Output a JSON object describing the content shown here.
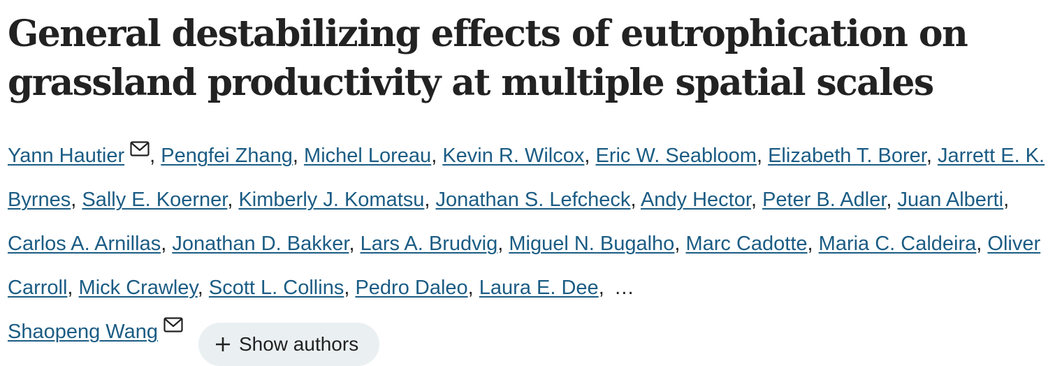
{
  "article": {
    "title": "General destabilizing effects of eutrophication on grassland productivity at multiple spatial scales",
    "authors": [
      {
        "name": "Yann Hautier",
        "corresponding": true
      },
      {
        "name": "Pengfei Zhang"
      },
      {
        "name": "Michel Loreau"
      },
      {
        "name": "Kevin R. Wilcox"
      },
      {
        "name": "Eric W. Seabloom"
      },
      {
        "name": "Elizabeth T. Borer"
      },
      {
        "name": "Jarrett E. K. Byrnes"
      },
      {
        "name": "Sally E. Koerner"
      },
      {
        "name": "Kimberly J. Komatsu"
      },
      {
        "name": "Jonathan S. Lefcheck"
      },
      {
        "name": "Andy Hector"
      },
      {
        "name": "Peter B. Adler"
      },
      {
        "name": "Juan Alberti"
      },
      {
        "name": "Carlos A. Arnillas"
      },
      {
        "name": "Jonathan D. Bakker"
      },
      {
        "name": "Lars A. Brudvig"
      },
      {
        "name": "Miguel N. Bugalho"
      },
      {
        "name": "Marc Cadotte"
      },
      {
        "name": "Maria C. Caldeira"
      },
      {
        "name": "Oliver Carroll"
      },
      {
        "name": "Mick Crawley"
      },
      {
        "name": "Scott L. Collins"
      },
      {
        "name": "Pedro Daleo"
      },
      {
        "name": "Laura E. Dee"
      }
    ],
    "ellipsis": "…",
    "last_author": {
      "name": "Shaopeng Wang",
      "corresponding": true
    },
    "show_authors_label": "Show authors",
    "icons": {
      "corresponding": "mail-icon",
      "show_authors": "plus-icon"
    },
    "colors": {
      "link": "#1b5c84",
      "text": "#222222",
      "button_bg": "#eaeff2"
    }
  }
}
